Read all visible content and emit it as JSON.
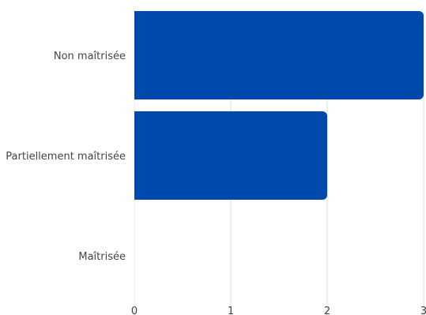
{
  "chart_data": {
    "type": "bar",
    "orientation": "horizontal",
    "categories": [
      "Non maîtrisée",
      "Partiellement maîtrisée",
      "Maîtrisée"
    ],
    "values": [
      3,
      2,
      0
    ],
    "xlim": [
      0,
      3
    ],
    "x_ticks": [
      "0",
      "1",
      "2",
      "3"
    ],
    "grid": "vertical",
    "legend": "none",
    "colors": {
      "bar": "#004aad",
      "grid": "#dddddd",
      "text": "#444444"
    }
  }
}
